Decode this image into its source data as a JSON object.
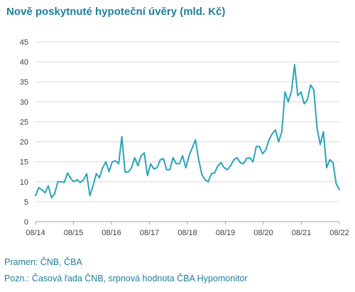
{
  "chart_data": {
    "type": "line",
    "title": "Nově poskytnuté hypoteční úvěry (mld. Kč)",
    "xlabel": "",
    "ylabel": "",
    "ylim": [
      0,
      45
    ],
    "y_ticks": [
      0,
      5,
      10,
      15,
      20,
      25,
      30,
      35,
      40,
      45
    ],
    "x_tick_labels": [
      "08/14",
      "08/15",
      "08/16",
      "08/17",
      "08/18",
      "08/19",
      "08/20",
      "08/21",
      "08/22"
    ],
    "x_start": "08/14",
    "x_end": "08/22",
    "grid": "horizontal",
    "color": "#2aa3b8",
    "series": [
      {
        "values": [
          6.5,
          8.5,
          8.0,
          7.2,
          9.0,
          6.0,
          7.0,
          10.0,
          10.0,
          9.8,
          12.2,
          10.8,
          10.0,
          10.5,
          9.8,
          10.5,
          12.0,
          6.5,
          9.0,
          12.0,
          11.0,
          13.5,
          15.0,
          12.5,
          15.0,
          15.2,
          14.5,
          21.3,
          12.4,
          12.4,
          13.5,
          16.0,
          14.0,
          16.5,
          17.2,
          11.5,
          14.5,
          13.2,
          13.5,
          15.5,
          15.8,
          13.0,
          13.0,
          16.0,
          14.5,
          14.5,
          16.5,
          13.5,
          16.5,
          18.5,
          20.5,
          15.5,
          11.8,
          10.5,
          10.0,
          12.0,
          12.2,
          14.0,
          14.8,
          13.5,
          13.0,
          14.0,
          15.5,
          16.0,
          14.8,
          14.5,
          15.8,
          16.0,
          15.0,
          18.8,
          18.8,
          17.0,
          18.0,
          20.5,
          22.0,
          23.0,
          20.0,
          22.5,
          32.5,
          30.0,
          32.5,
          39.3,
          31.5,
          32.5,
          29.5,
          30.5,
          34.2,
          33.0,
          23.5,
          19.3,
          22.5,
          13.5,
          15.5,
          14.8,
          9.5,
          8.0
        ]
      }
    ]
  },
  "footer": {
    "source": "Pramen: ČNB, ČBA",
    "note": "Pozn.: Časová řada ČNB, srpnová hodnota ČBA Hypomonitor"
  }
}
